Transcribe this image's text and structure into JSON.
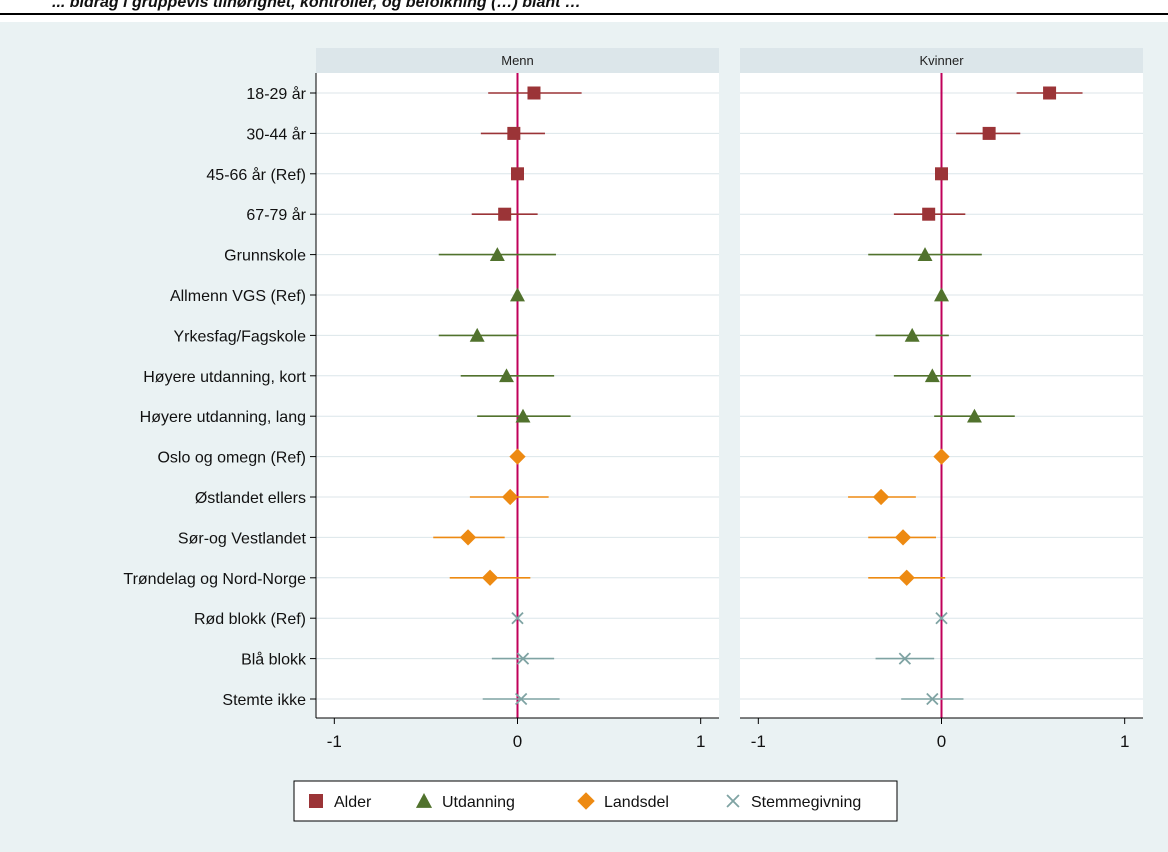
{
  "header_fragment": "... bidrag i gruppevis tilhørighet, kontroller, og befolkning (…) blant …",
  "chart_data": {
    "type": "scatter",
    "subtype": "coefficient-plot",
    "categories": [
      "18-29 år",
      "30-44 år",
      "45-66 år (Ref)",
      "67-79 år",
      "Grunnskole",
      "Allmenn VGS (Ref)",
      "Yrkesfag/Fagskole",
      "Høyere utdanning, kort",
      "Høyere utdanning, lang",
      "Oslo og omegn (Ref)",
      "Østlandet ellers",
      "Sør-og Vestlandet",
      "Trøndelag og Nord-Norge",
      "Rød blokk (Ref)",
      "Blå blokk",
      "Stemte ikke"
    ],
    "groups": [
      "Alder",
      "Alder",
      "Alder",
      "Alder",
      "Utdanning",
      "Utdanning",
      "Utdanning",
      "Utdanning",
      "Utdanning",
      "Landsdel",
      "Landsdel",
      "Landsdel",
      "Landsdel",
      "Stemmegivning",
      "Stemmegivning",
      "Stemmegivning"
    ],
    "panels": [
      {
        "title": "Menn",
        "estimates": [
          0.09,
          -0.02,
          0.0,
          -0.07,
          -0.11,
          0.0,
          -0.22,
          -0.06,
          0.03,
          0.0,
          -0.04,
          -0.27,
          -0.15,
          0.0,
          0.03,
          0.02
        ],
        "ci_low": [
          -0.16,
          -0.2,
          0.0,
          -0.25,
          -0.43,
          0.0,
          -0.43,
          -0.31,
          -0.22,
          0.0,
          -0.26,
          -0.46,
          -0.37,
          0.0,
          -0.14,
          -0.19
        ],
        "ci_high": [
          0.35,
          0.15,
          0.0,
          0.11,
          0.21,
          0.0,
          0.0,
          0.2,
          0.29,
          0.0,
          0.17,
          -0.07,
          0.07,
          0.0,
          0.2,
          0.23
        ]
      },
      {
        "title": "Kvinner",
        "estimates": [
          0.59,
          0.26,
          0.0,
          -0.07,
          -0.09,
          0.0,
          -0.16,
          -0.05,
          0.18,
          0.0,
          -0.33,
          -0.21,
          -0.19,
          0.0,
          -0.2,
          -0.05
        ],
        "ci_low": [
          0.41,
          0.08,
          0.0,
          -0.26,
          -0.4,
          0.0,
          -0.36,
          -0.26,
          -0.04,
          0.0,
          -0.51,
          -0.4,
          -0.4,
          0.0,
          -0.36,
          -0.22
        ],
        "ci_high": [
          0.77,
          0.43,
          0.0,
          0.13,
          0.22,
          0.0,
          0.04,
          0.16,
          0.4,
          0.0,
          -0.14,
          -0.03,
          0.02,
          0.0,
          -0.04,
          0.12
        ]
      }
    ],
    "xticks": [
      -1,
      0,
      1
    ],
    "xtick_labels": [
      "-1",
      "0",
      "1"
    ],
    "xlim": [
      -1.1,
      1.1
    ],
    "reference_line": 0,
    "grid": true,
    "legend_position": "bottom",
    "legend": [
      {
        "name": "Alder",
        "marker": "square",
        "color": "#9b3437"
      },
      {
        "name": "Utdanning",
        "marker": "triangle",
        "color": "#51722d"
      },
      {
        "name": "Landsdel",
        "marker": "diamond",
        "color": "#ed8a12"
      },
      {
        "name": "Stemmegivning",
        "marker": "x",
        "color": "#7fa3a3"
      }
    ],
    "colors": {
      "background": "#eaf2f3",
      "strip": "#dce6ea",
      "reference_line": "#c0005a",
      "grid": "#dce6ea"
    }
  }
}
